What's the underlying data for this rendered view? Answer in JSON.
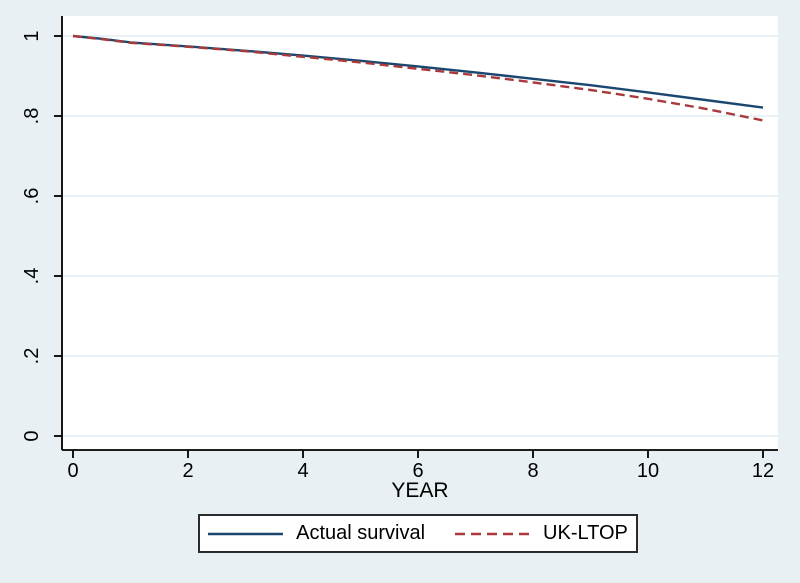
{
  "figure": {
    "background_color": "#E9F0F3",
    "plot_background_color": "#FFFFFF",
    "gridline_color": "#DEEBEF",
    "axis_color": "#000000"
  },
  "chart_data": {
    "type": "line",
    "title": "",
    "xlabel": "YEAR",
    "ylabel": "",
    "xlim": [
      0,
      12
    ],
    "ylim": [
      0,
      1
    ],
    "x_ticks": [
      0,
      2,
      4,
      6,
      8,
      10,
      12
    ],
    "x_tick_labels": [
      "0",
      "2",
      "4",
      "6",
      "8",
      "10",
      "12"
    ],
    "y_ticks": [
      0,
      0.2,
      0.4,
      0.6,
      0.8,
      1
    ],
    "y_tick_labels": [
      "0",
      ".2",
      ".4",
      ".6",
      ".8",
      "1"
    ],
    "grid": "horizontal",
    "legend_position": "bottom",
    "series": [
      {
        "name": "Actual survival",
        "color": "#1A476F",
        "style": "solid",
        "x": [
          0,
          0.5,
          1,
          2,
          3,
          4,
          5,
          6,
          7,
          8,
          9,
          10,
          11,
          12
        ],
        "values": [
          1.0,
          0.993,
          0.984,
          0.974,
          0.963,
          0.951,
          0.938,
          0.924,
          0.909,
          0.893,
          0.877,
          0.859,
          0.84,
          0.821
        ]
      },
      {
        "name": "UK-LTOP",
        "color": "#A93A3C",
        "style": "dashed",
        "x": [
          0,
          0.5,
          1,
          2,
          3,
          4,
          5,
          6,
          7,
          8,
          9,
          10,
          11,
          12
        ],
        "values": [
          1.0,
          0.992,
          0.983,
          0.973,
          0.962,
          0.948,
          0.934,
          0.918,
          0.902,
          0.884,
          0.865,
          0.843,
          0.818,
          0.789
        ]
      }
    ]
  }
}
